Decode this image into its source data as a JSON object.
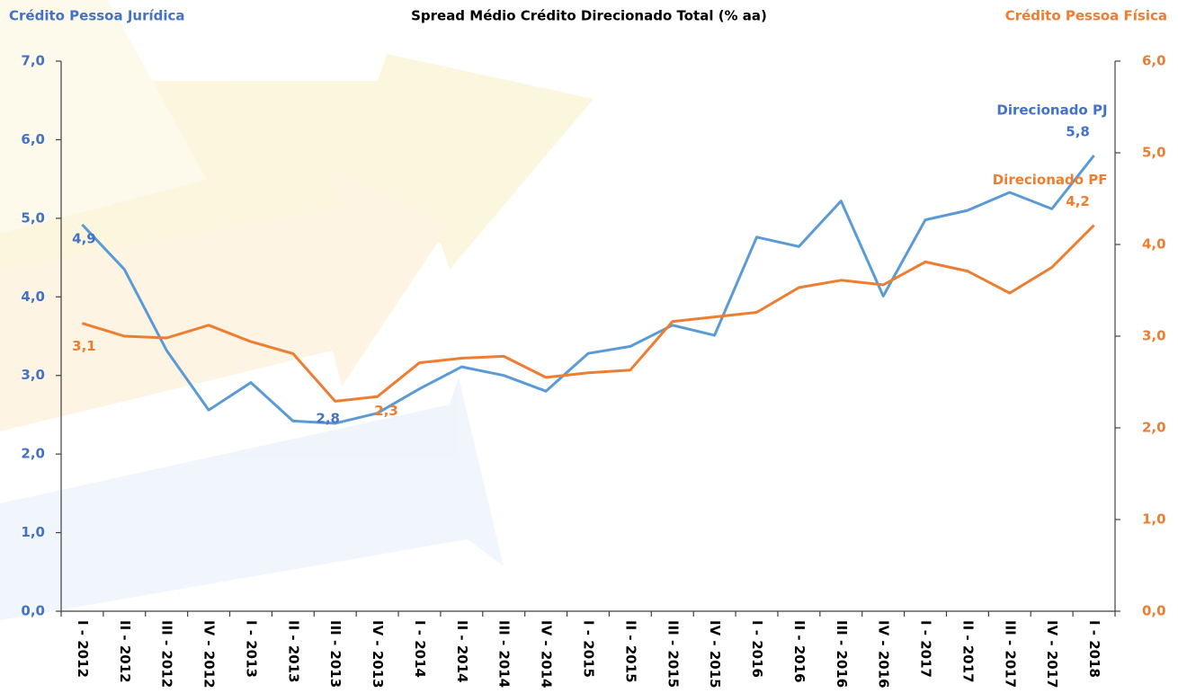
{
  "chart_data": {
    "type": "line",
    "title": "Spread Médio Crédito Direcionado Total (% aa)",
    "y_label": "Crédito Pessoa Jurídica",
    "y2_label": "Crédito Pessoa Física",
    "categories": [
      "I - 2012",
      "II - 2012",
      "III - 2012",
      "IV - 2012",
      "I - 2013",
      "II - 2013",
      "III - 2013",
      "IV - 2013",
      "I - 2014",
      "II - 2014",
      "III - 2014",
      "IV - 2014",
      "I - 2015",
      "II - 2015",
      "III - 2015",
      "IV - 2015",
      "I - 2016",
      "II - 2016",
      "III - 2016",
      "IV - 2016",
      "I - 2017",
      "II - 2017",
      "III - 2017",
      "IV - 2017",
      "I - 2018"
    ],
    "series": [
      {
        "name": "Direcionado PJ",
        "color": "#5b9bd5",
        "label_color": "#4472c4",
        "axis": "y",
        "values": [
          4.92,
          4.35,
          3.32,
          2.56,
          2.91,
          2.42,
          2.39,
          2.52,
          2.83,
          3.11,
          3.0,
          2.8,
          3.28,
          3.37,
          3.64,
          3.51,
          4.76,
          4.64,
          5.22,
          4.01,
          4.98,
          5.1,
          5.33,
          5.12,
          5.8
        ],
        "value_labels": [
          "4,9",
          null,
          null,
          null,
          null,
          null,
          null,
          null,
          null,
          null,
          null,
          null,
          null,
          null,
          null,
          null,
          null,
          null,
          null,
          null,
          null,
          null,
          null,
          null,
          "5,8"
        ]
      },
      {
        "name": "Direcionado PF",
        "color": "#ed7d31",
        "label_color": "#ed7d31",
        "axis": "y2",
        "values": [
          3.14,
          3.0,
          2.98,
          3.12,
          2.94,
          2.81,
          2.29,
          2.34,
          2.71,
          2.76,
          2.78,
          2.55,
          2.6,
          2.63,
          3.16,
          3.21,
          3.26,
          3.53,
          3.61,
          3.56,
          3.81,
          3.71,
          3.47,
          3.75,
          4.21
        ],
        "value_labels": [
          "3,1",
          null,
          null,
          null,
          null,
          null,
          null,
          "2,3",
          null,
          null,
          null,
          null,
          null,
          null,
          null,
          null,
          null,
          null,
          null,
          null,
          null,
          null,
          null,
          null,
          "4,2"
        ]
      }
    ],
    "annotations": [
      "2,8"
    ],
    "ylim": [
      0,
      7
    ],
    "yticks": [
      {
        "value": 0,
        "label": "0,0"
      },
      {
        "value": 1,
        "label": "1,0"
      },
      {
        "value": 2,
        "label": "2,0"
      },
      {
        "value": 3,
        "label": "3,0"
      },
      {
        "value": 4,
        "label": "4,0"
      },
      {
        "value": 5,
        "label": "5,0"
      },
      {
        "value": 6,
        "label": "6,0"
      },
      {
        "value": 7,
        "label": "7,0"
      }
    ],
    "y2lim": [
      0,
      6
    ],
    "y2ticks": [
      {
        "value": 0,
        "label": "0,0"
      },
      {
        "value": 1,
        "label": "1,0"
      },
      {
        "value": 2,
        "label": "2,0"
      },
      {
        "value": 3,
        "label": "3,0"
      },
      {
        "value": 4,
        "label": "4,0"
      },
      {
        "value": 5,
        "label": "5,0"
      },
      {
        "value": 6,
        "label": "6,0"
      }
    ],
    "grid": false
  }
}
